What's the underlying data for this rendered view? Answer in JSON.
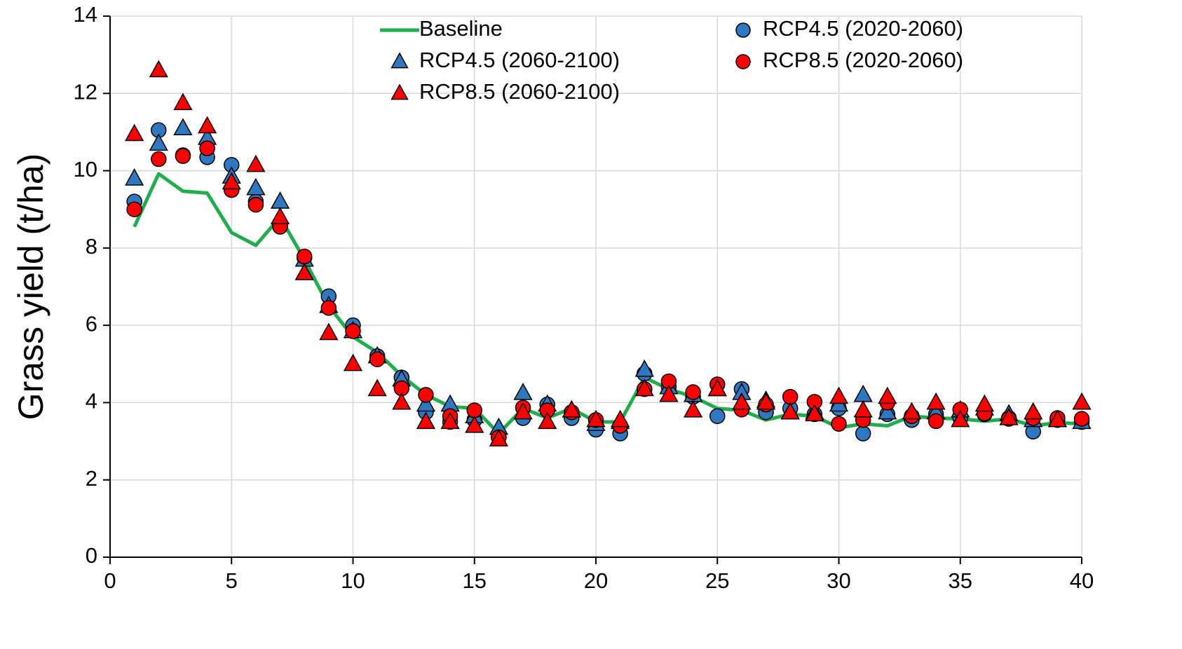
{
  "chart_data": {
    "type": "scatter",
    "y_label": "Grass yield (t/ha)",
    "x": [
      1,
      2,
      3,
      4,
      5,
      6,
      7,
      8,
      9,
      10,
      11,
      12,
      13,
      14,
      15,
      16,
      17,
      18,
      19,
      20,
      21,
      22,
      23,
      24,
      25,
      26,
      27,
      28,
      29,
      30,
      31,
      32,
      33,
      34,
      35,
      36,
      37,
      38,
      39,
      40
    ],
    "xlim": [
      0,
      40
    ],
    "xticks": [
      0,
      5,
      10,
      15,
      20,
      25,
      30,
      35,
      40
    ],
    "ylim": [
      0,
      14
    ],
    "yticks": [
      0,
      2,
      4,
      6,
      8,
      10,
      12,
      14
    ],
    "grid": true,
    "legend": "top",
    "series": [
      {
        "name": "Baseline",
        "color": "#1fae4b",
        "style": "line",
        "values": [
          8.55,
          9.92,
          9.47,
          9.42,
          8.4,
          8.07,
          8.8,
          7.7,
          6.5,
          5.7,
          5.3,
          4.7,
          4.2,
          3.9,
          3.85,
          3.2,
          3.85,
          3.6,
          3.85,
          3.5,
          3.5,
          4.65,
          4.35,
          4.15,
          3.85,
          3.8,
          3.55,
          3.7,
          3.65,
          3.35,
          3.45,
          3.4,
          3.65,
          3.6,
          3.58,
          3.52,
          3.58,
          3.4,
          3.48,
          3.45
        ]
      },
      {
        "name": "RCP4.5 (2020-2060)",
        "color": "#2e78c2",
        "style": "circle",
        "values": [
          9.2,
          11.05,
          10.4,
          10.35,
          10.15,
          9.2,
          8.6,
          7.75,
          6.75,
          6.0,
          5.2,
          4.65,
          3.75,
          3.5,
          3.55,
          3.1,
          3.6,
          3.95,
          3.6,
          3.3,
          3.2,
          4.75,
          4.4,
          4.15,
          3.65,
          4.35,
          3.75,
          3.85,
          3.7,
          3.85,
          3.2,
          3.7,
          3.55,
          3.7,
          3.6,
          3.7,
          3.6,
          3.25,
          3.55,
          3.5
        ]
      },
      {
        "name": "RCP4.5 (2060-2100)",
        "color": "#2e78c2",
        "style": "triangle",
        "values": [
          9.8,
          10.7,
          11.1,
          10.85,
          9.85,
          9.55,
          9.2,
          7.7,
          6.5,
          5.85,
          5.2,
          4.6,
          3.95,
          3.95,
          3.65,
          3.35,
          4.25,
          3.95,
          3.8,
          3.45,
          3.5,
          4.85,
          4.4,
          4.2,
          4.35,
          4.25,
          4.05,
          3.75,
          3.75,
          3.95,
          4.2,
          3.75,
          3.75,
          3.75,
          3.8,
          3.85,
          3.7,
          3.55,
          3.55,
          3.5
        ]
      },
      {
        "name": "RCP8.5 (2020-2060)",
        "color": "#ff0000",
        "style": "circle",
        "values": [
          9.0,
          10.3,
          10.38,
          10.58,
          9.5,
          9.12,
          8.55,
          7.78,
          6.45,
          5.85,
          5.12,
          4.37,
          4.2,
          3.65,
          3.8,
          3.1,
          3.87,
          3.8,
          3.75,
          3.55,
          3.4,
          4.35,
          4.55,
          4.27,
          4.47,
          3.82,
          3.95,
          4.15,
          4.02,
          3.45,
          3.55,
          4.0,
          3.65,
          3.52,
          3.82,
          3.72,
          3.58,
          3.6,
          3.6,
          3.58
        ]
      },
      {
        "name": "RCP8.5 (2060-2100)",
        "color": "#ff0000",
        "style": "triangle",
        "values": [
          10.95,
          12.6,
          11.75,
          11.15,
          9.7,
          10.15,
          8.8,
          7.35,
          5.8,
          5.0,
          4.35,
          4.0,
          3.5,
          3.5,
          3.4,
          3.05,
          3.75,
          3.5,
          3.8,
          3.55,
          3.55,
          4.35,
          4.2,
          3.8,
          4.35,
          4.0,
          4.0,
          3.75,
          3.7,
          4.15,
          3.8,
          4.15,
          3.75,
          4.0,
          3.55,
          3.95,
          3.6,
          3.75,
          3.55,
          4.0
        ]
      }
    ]
  }
}
